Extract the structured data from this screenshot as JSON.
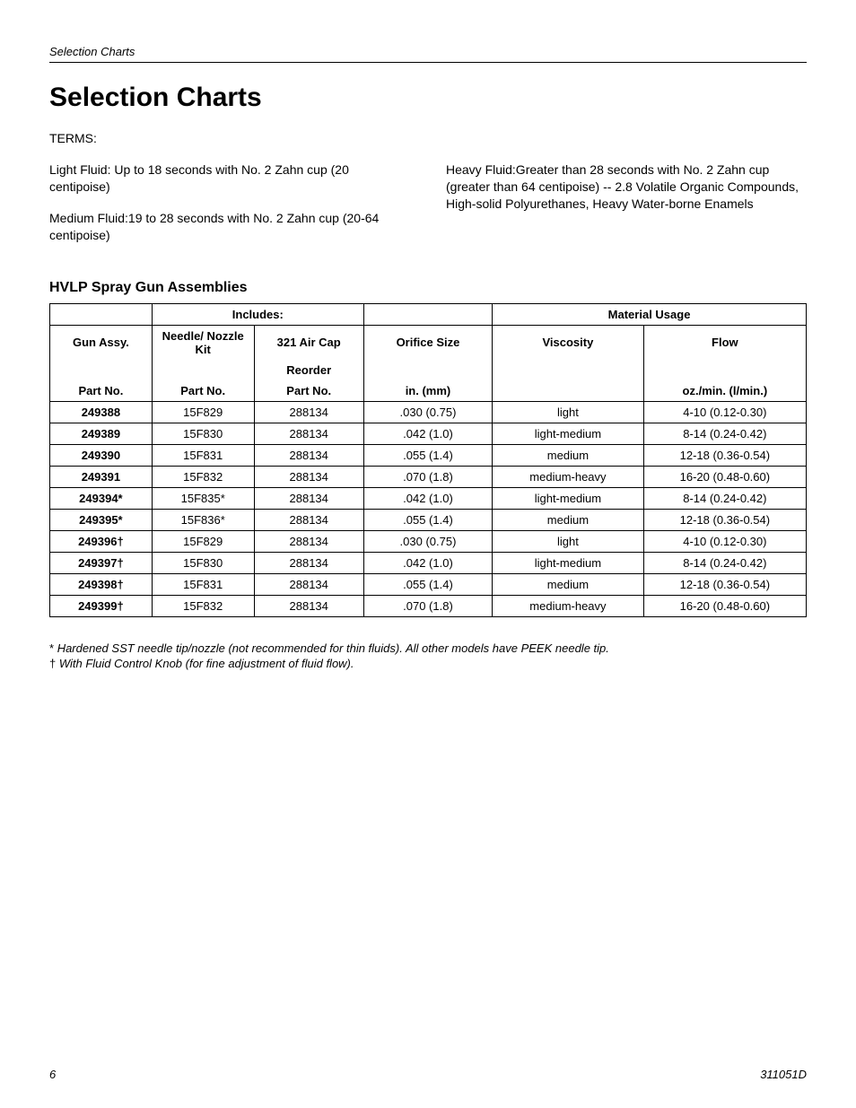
{
  "page": {
    "running_head": "Selection Charts",
    "title": "Selection Charts",
    "page_number": "6",
    "doc_id": "311051D"
  },
  "terms": {
    "label": "TERMS:",
    "left": [
      "Light Fluid: Up to 18 seconds with No. 2 Zahn cup (20 centipoise)",
      "Medium Fluid:19 to 28 seconds with No. 2 Zahn cup (20-64 centipoise)"
    ],
    "right": [
      "Heavy Fluid:Greater than 28 seconds with No. 2 Zahn cup (greater than 64 centipoise) -- 2.8 Volatile Organic Compounds, High-solid Polyurethanes, Heavy Water-borne Enamels"
    ]
  },
  "table": {
    "heading": "HVLP Spray Gun Assemblies",
    "head": {
      "includes": "Includes:",
      "material_usage": "Material Usage",
      "gun_assy": "Gun Assy.",
      "needle_nozzle": "Needle/ Nozzle Kit",
      "air_cap": "321 Air Cap",
      "reorder": "Reorder",
      "orifice": "Orifice Size",
      "viscosity": "Viscosity",
      "flow": "Flow",
      "part_no": "Part No.",
      "in_mm": "in. (mm)",
      "flow_units": "oz./min. (l/min.)"
    },
    "rows": [
      {
        "gun": "249388",
        "needle": "15F829",
        "cap": "288134",
        "orifice": ".030 (0.75)",
        "visc": "light",
        "flow": "4-10 (0.12-0.30)"
      },
      {
        "gun": "249389",
        "needle": "15F830",
        "cap": "288134",
        "orifice": ".042 (1.0)",
        "visc": "light-medium",
        "flow": "8-14 (0.24-0.42)"
      },
      {
        "gun": "249390",
        "needle": "15F831",
        "cap": "288134",
        "orifice": ".055 (1.4)",
        "visc": "medium",
        "flow": "12-18 (0.36-0.54)"
      },
      {
        "gun": "249391",
        "needle": "15F832",
        "cap": "288134",
        "orifice": ".070 (1.8)",
        "visc": "medium-heavy",
        "flow": "16-20 (0.48-0.60)"
      },
      {
        "gun": "249394*",
        "needle": "15F835*",
        "cap": "288134",
        "orifice": ".042 (1.0)",
        "visc": "light-medium",
        "flow": "8-14 (0.24-0.42)"
      },
      {
        "gun": "249395*",
        "needle": "15F836*",
        "cap": "288134",
        "orifice": ".055 (1.4)",
        "visc": "medium",
        "flow": "12-18 (0.36-0.54)"
      },
      {
        "gun": "249396†",
        "needle": "15F829",
        "cap": "288134",
        "orifice": ".030 (0.75)",
        "visc": "light",
        "flow": "4-10 (0.12-0.30)"
      },
      {
        "gun": "249397†",
        "needle": "15F830",
        "cap": "288134",
        "orifice": ".042 (1.0)",
        "visc": "light-medium",
        "flow": "8-14 (0.24-0.42)"
      },
      {
        "gun": "249398†",
        "needle": "15F831",
        "cap": "288134",
        "orifice": ".055 (1.4)",
        "visc": "medium",
        "flow": "12-18 (0.36-0.54)"
      },
      {
        "gun": "249399†",
        "needle": "15F832",
        "cap": "288134",
        "orifice": ".070 (1.8)",
        "visc": "medium-heavy",
        "flow": "16-20 (0.48-0.60)"
      }
    ]
  },
  "footnotes": {
    "star_sym": "*",
    "star_text": "Hardened SST needle tip/nozzle (not recommended for thin fluids). All other models have PEEK needle tip.",
    "dagger_sym": "†",
    "dagger_text": "With Fluid Control Knob (for fine adjustment of fluid flow)."
  }
}
